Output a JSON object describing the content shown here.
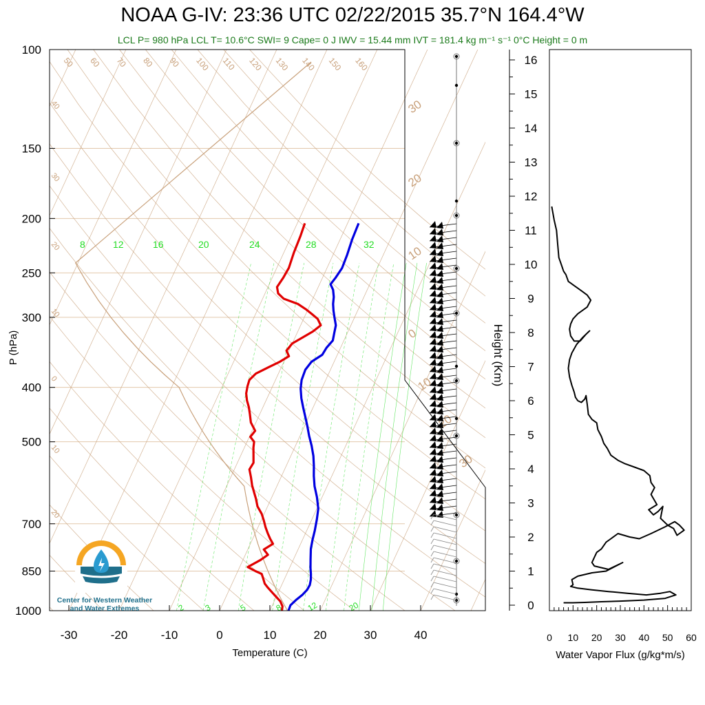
{
  "title": "NOAA G-IV: 23:36 UTC 02/22/2015  35.7°N 164.4°W",
  "subtitle": "LCL P= 980 hPa  LCL T= 10.6°C  SWI= 9  Cape= 0 J  IWV = 15.44 mm  IVT = 181.4 kg m⁻¹ s⁻¹  0°C Height = 0 m",
  "logo": {
    "line1": "Center for Western Weather",
    "line2": "and Water Extremes"
  },
  "colors": {
    "temperature": "#e00000",
    "dewpoint": "#0000e0",
    "mixing_ratio": "#22dd22",
    "adiabat": "#c8a07a",
    "flux": "#000000"
  },
  "chart_data": [
    {
      "type": "line",
      "name": "skew-t",
      "xlabel": "Temperature (C)",
      "ylabel": "P (hPa)",
      "x_ticks": [
        -30,
        -20,
        -10,
        0,
        10,
        20,
        30,
        40
      ],
      "y_ticks": [
        100,
        150,
        200,
        250,
        300,
        400,
        500,
        700,
        850,
        1000
      ],
      "isotherm_labels": [
        -40,
        -30,
        -20,
        -10,
        0,
        10,
        20,
        30
      ],
      "dry_adiabat_labels": [
        50,
        60,
        70,
        80,
        90,
        100,
        110,
        120,
        130,
        140,
        150,
        160
      ],
      "mixing_ratio_top_labels": [
        8,
        12,
        16,
        20,
        24,
        28,
        32
      ],
      "mixing_ratio_bottom_labels": [
        2,
        3,
        5,
        8,
        12,
        20
      ],
      "series": [
        {
          "key": "temperature",
          "points": [
            [
              -18.5,
              204
            ],
            [
              -18.2,
              215
            ],
            [
              -18.0,
              230
            ],
            [
              -17.6,
              245
            ],
            [
              -17.8,
              255
            ],
            [
              -18.2,
              265
            ],
            [
              -17.4,
              272
            ],
            [
              -15.8,
              278
            ],
            [
              -12.5,
              284
            ],
            [
              -10.5,
              290
            ],
            [
              -8.8,
              296
            ],
            [
              -7.2,
              302
            ],
            [
              -6.0,
              310
            ],
            [
              -7.0,
              318
            ],
            [
              -8.5,
              326
            ],
            [
              -10.0,
              334
            ],
            [
              -10.5,
              344
            ],
            [
              -9.5,
              352
            ],
            [
              -10.8,
              360
            ],
            [
              -12.5,
              368
            ],
            [
              -14.5,
              378
            ],
            [
              -15.2,
              388
            ],
            [
              -15.0,
              398
            ],
            [
              -14.6,
              410
            ],
            [
              -13.8,
              422
            ],
            [
              -12.8,
              434
            ],
            [
              -12.0,
              446
            ],
            [
              -11.0,
              462
            ],
            [
              -9.4,
              478
            ],
            [
              -9.8,
              490
            ],
            [
              -8.6,
              500
            ],
            [
              -8.2,
              512
            ],
            [
              -7.5,
              528
            ],
            [
              -6.8,
              545
            ],
            [
              -7.0,
              560
            ],
            [
              -6.0,
              578
            ],
            [
              -5.0,
              598
            ],
            [
              -4.0,
              615
            ],
            [
              -3.0,
              632
            ],
            [
              -2.0,
              652
            ],
            [
              -0.5,
              672
            ],
            [
              0.5,
              690
            ],
            [
              1.5,
              710
            ],
            [
              2.5,
              728
            ],
            [
              3.5,
              745
            ],
            [
              4.5,
              760
            ],
            [
              3.2,
              778
            ],
            [
              4.5,
              795
            ],
            [
              3.5,
              812
            ],
            [
              1.6,
              836
            ],
            [
              3.5,
              850
            ],
            [
              5.0,
              860
            ],
            [
              5.8,
              878
            ],
            [
              6.5,
              895
            ],
            [
              7.5,
              910
            ],
            [
              8.8,
              928
            ],
            [
              10.0,
              945
            ],
            [
              11.2,
              962
            ],
            [
              12.1,
              982
            ],
            [
              12.4,
              1000
            ]
          ]
        },
        {
          "key": "dewpoint",
          "points": [
            [
              -7.8,
              204
            ],
            [
              -7.6,
              218
            ],
            [
              -7.2,
              232
            ],
            [
              -7.0,
              245
            ],
            [
              -7.4,
              255
            ],
            [
              -7.8,
              262
            ],
            [
              -6.8,
              268
            ],
            [
              -6.0,
              276
            ],
            [
              -5.5,
              284
            ],
            [
              -4.8,
              292
            ],
            [
              -4.0,
              300
            ],
            [
              -3.0,
              310
            ],
            [
              -2.6,
              320
            ],
            [
              -2.2,
              330
            ],
            [
              -2.8,
              340
            ],
            [
              -3.0,
              350
            ],
            [
              -4.5,
              360
            ],
            [
              -5.0,
              372
            ],
            [
              -4.8,
              388
            ],
            [
              -4.2,
              402
            ],
            [
              -3.2,
              418
            ],
            [
              -2.0,
              434
            ],
            [
              -0.8,
              450
            ],
            [
              0.5,
              468
            ],
            [
              1.8,
              488
            ],
            [
              3.2,
              508
            ],
            [
              4.5,
              530
            ],
            [
              5.5,
              552
            ],
            [
              6.4,
              575
            ],
            [
              7.5,
              600
            ],
            [
              9.0,
              628
            ],
            [
              10.3,
              658
            ],
            [
              11.0,
              688
            ],
            [
              11.6,
              720
            ],
            [
              12.0,
              748
            ],
            [
              12.5,
              776
            ],
            [
              13.4,
              810
            ],
            [
              14.2,
              840
            ],
            [
              14.8,
              860
            ],
            [
              15.3,
              880
            ],
            [
              15.6,
              900
            ],
            [
              15.5,
              918
            ],
            [
              15.0,
              938
            ],
            [
              14.2,
              958
            ],
            [
              13.6,
              978
            ],
            [
              13.7,
              1000
            ]
          ]
        }
      ]
    },
    {
      "type": "line",
      "name": "water-vapor-flux",
      "xlabel": "Water Vapor Flux (g/kg*m/s)",
      "ylabel": "Height (Km)",
      "xlim": [
        0,
        60
      ],
      "ylim": [
        0,
        16
      ],
      "x_ticks": [
        0,
        10,
        20,
        30,
        40,
        50,
        60
      ],
      "y_ticks": [
        0,
        1,
        2,
        3,
        4,
        5,
        6,
        7,
        8,
        9,
        10,
        11,
        12,
        13,
        14,
        15,
        16
      ],
      "x": [
        1.0,
        2.0,
        3.0,
        3.5,
        4.0,
        5.0,
        6.0,
        7.0,
        8.0,
        9.0,
        10.0,
        12.0,
        14.0,
        16.0,
        17.5,
        16.0,
        14.0,
        12.0,
        10.0,
        9.0,
        8.5,
        9.0,
        10.5,
        13.0,
        15.5,
        17.0,
        14.0,
        11.5,
        9.5,
        8.5,
        8.0,
        8.5,
        9.5,
        10.5,
        11.0,
        12.0,
        13.5,
        15.0,
        15.5,
        16.0,
        16.5,
        18.0,
        20.0,
        20.5,
        22.0,
        23.0,
        24.5,
        26.0,
        29.0,
        32.0,
        36.0,
        40.0,
        42.5,
        43.0,
        44.5,
        43.0,
        45.5,
        42.0,
        44.0,
        46.0,
        48.0,
        47.0,
        50.0,
        52.5,
        54.0,
        57.0,
        55.0,
        53.0,
        49.0,
        43.0,
        38.0,
        34.0,
        29.0,
        26.0,
        24.0,
        22.0,
        20.0,
        19.0,
        18.0,
        19.0,
        25.0,
        31.0,
        24.0,
        18.0,
        12.0,
        9.5,
        10.0,
        9.0,
        12.0,
        18.0,
        25.0,
        33.0,
        41.0,
        47.0,
        51.0,
        53.5,
        49.0,
        40.0,
        30.0,
        22.0,
        15.0,
        10.0,
        6.0
      ],
      "y": [
        11.7,
        11.3,
        11.0,
        10.6,
        10.2,
        10.0,
        9.8,
        9.7,
        9.5,
        9.45,
        9.4,
        9.3,
        9.2,
        9.1,
        8.95,
        8.75,
        8.65,
        8.55,
        8.4,
        8.25,
        8.1,
        7.9,
        7.75,
        7.75,
        7.95,
        8.05,
        7.85,
        7.65,
        7.4,
        7.2,
        6.95,
        6.7,
        6.45,
        6.25,
        6.1,
        6.0,
        5.95,
        6.05,
        6.15,
        5.9,
        5.6,
        5.45,
        5.35,
        5.15,
        4.95,
        4.75,
        4.6,
        4.4,
        4.25,
        4.15,
        4.05,
        3.95,
        3.8,
        3.6,
        3.45,
        3.25,
        2.95,
        2.8,
        2.65,
        2.75,
        2.9,
        2.55,
        2.35,
        2.25,
        2.05,
        2.2,
        2.35,
        2.45,
        2.3,
        2.1,
        1.95,
        2.0,
        2.1,
        1.95,
        1.85,
        1.65,
        1.55,
        1.4,
        1.25,
        1.15,
        1.05,
        1.25,
        1.0,
        0.95,
        0.85,
        0.75,
        0.6,
        0.55,
        0.5,
        0.45,
        0.4,
        0.35,
        0.3,
        0.35,
        0.4,
        0.3,
        0.2,
        0.15,
        0.12,
        0.1,
        0.08,
        0.07,
        0.07
      ]
    }
  ]
}
